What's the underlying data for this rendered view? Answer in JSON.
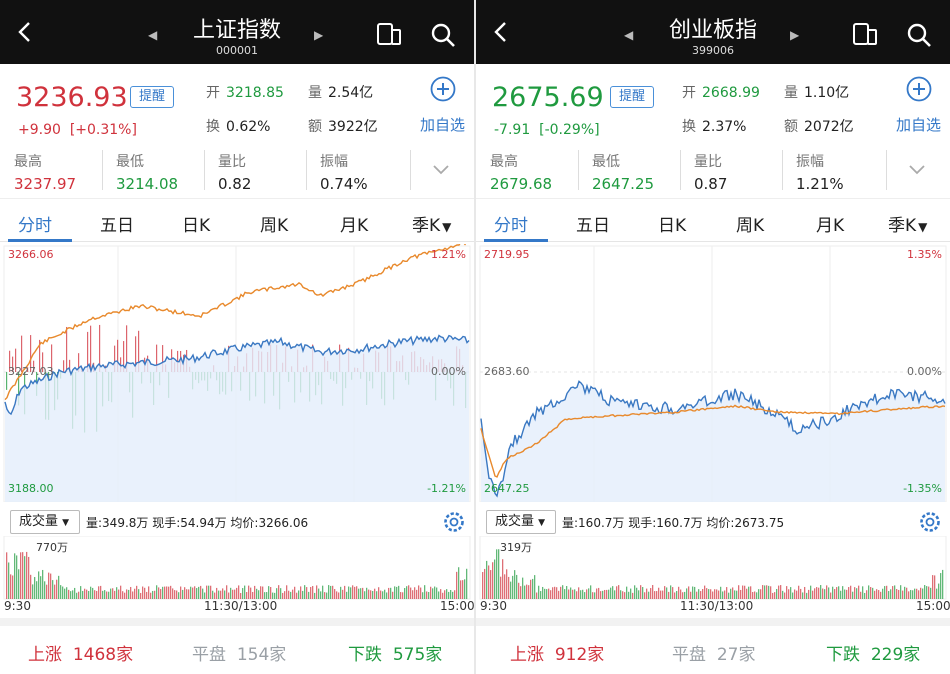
{
  "panels": [
    {
      "title": "上证指数",
      "code": "000001",
      "price": "3236.93",
      "change": "+9.90",
      "change_pct": "[+0.31%]",
      "trend": "up",
      "remind_label": "提醒",
      "add_fav_label": "加自选",
      "quote": {
        "open_label": "开",
        "open": "3218.85",
        "volume_label": "量",
        "volume": "2.54亿",
        "turnover_label": "换",
        "turnover": "0.62%",
        "amount_label": "额",
        "amount": "3922亿"
      },
      "stats": [
        {
          "label": "最高",
          "value": "3237.97",
          "color": "#d0323c"
        },
        {
          "label": "最低",
          "value": "3214.08",
          "color": "#1f9a3f"
        },
        {
          "label": "量比",
          "value": "0.82",
          "color": "#222222"
        },
        {
          "label": "振幅",
          "value": "0.74%",
          "color": "#222222"
        }
      ],
      "tabs": [
        "分时",
        "五日",
        "日K",
        "周K",
        "月K",
        "季K"
      ],
      "axis": {
        "top": "3266.06",
        "mid": "3227.03",
        "bottom": "3188.00",
        "pct_top": "1.21%",
        "pct_mid": "0.00%",
        "pct_bottom": "-1.21%"
      },
      "vol_select": "成交量",
      "vol_info": "量:349.8万 现手:54.94万 均价:3266.06",
      "vol_max": "770万",
      "times": [
        "9:30",
        "11:30/13:00",
        "15:00"
      ],
      "footer": {
        "up_label": "上涨",
        "up_count": "1468家",
        "flat_label": "平盘",
        "flat_count": "154家",
        "down_label": "下跌",
        "down_count": "575家"
      }
    },
    {
      "title": "创业板指",
      "code": "399006",
      "price": "2675.69",
      "change": "-7.91",
      "change_pct": "[-0.29%]",
      "trend": "down",
      "remind_label": "提醒",
      "add_fav_label": "加自选",
      "quote": {
        "open_label": "开",
        "open": "2668.99",
        "volume_label": "量",
        "volume": "1.10亿",
        "turnover_label": "换",
        "turnover": "2.37%",
        "amount_label": "额",
        "amount": "2072亿"
      },
      "stats": [
        {
          "label": "最高",
          "value": "2679.68",
          "color": "#1f9a3f"
        },
        {
          "label": "最低",
          "value": "2647.25",
          "color": "#1f9a3f"
        },
        {
          "label": "量比",
          "value": "0.87",
          "color": "#222222"
        },
        {
          "label": "振幅",
          "value": "1.21%",
          "color": "#222222"
        }
      ],
      "tabs": [
        "分时",
        "五日",
        "日K",
        "周K",
        "月K",
        "季K"
      ],
      "axis": {
        "top": "2719.95",
        "mid": "2683.60",
        "bottom": "2647.25",
        "pct_top": "1.35%",
        "pct_mid": "0.00%",
        "pct_bottom": "-1.35%"
      },
      "vol_select": "成交量",
      "vol_info": "量:160.7万 现手:160.7万 均价:2673.75",
      "vol_max": "319万",
      "times": [
        "9:30",
        "11:30/13:00",
        "15:00"
      ],
      "footer": {
        "up_label": "上涨",
        "up_count": "912家",
        "flat_label": "平盘",
        "flat_count": "27家",
        "down_label": "下跌",
        "down_count": "229家"
      }
    }
  ],
  "colors": {
    "up": "#d0323c",
    "down": "#1f9a3f",
    "accent": "#3478c8",
    "price_line": "#3a78c2",
    "avg_line": "#e8892c",
    "flat": "#9aa0a6"
  }
}
